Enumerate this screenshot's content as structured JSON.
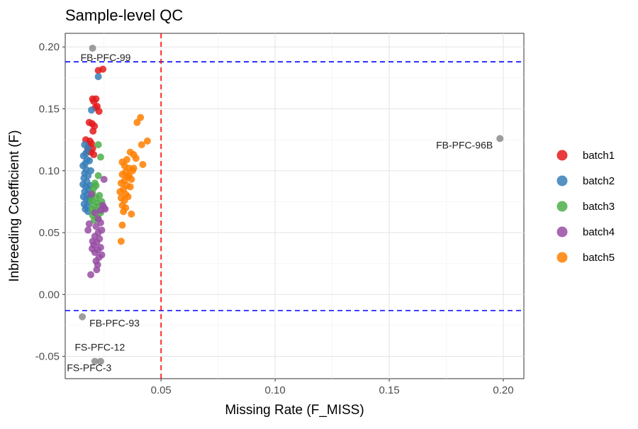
{
  "chart_data": {
    "type": "scatter",
    "title": "Sample-level QC",
    "xlabel": "Missing Rate (F_MISS)",
    "ylabel": "Inbreeding Coefficient (F)",
    "xlim": [
      0.008,
      0.209
    ],
    "ylim": [
      -0.068,
      0.211
    ],
    "x_ticks": [
      0.05,
      0.1,
      0.15,
      0.2
    ],
    "x_tick_labels": [
      "0.05",
      "0.10",
      "0.15",
      "0.20"
    ],
    "y_ticks": [
      -0.05,
      0.0,
      0.05,
      0.1,
      0.15,
      0.2
    ],
    "y_tick_labels": [
      "-0.05",
      "0.00",
      "0.05",
      "0.10",
      "0.15",
      "0.20"
    ],
    "grid": true,
    "legend_position": "right",
    "reference_lines": [
      {
        "orientation": "horizontal",
        "value": 0.188,
        "color": "#0000ff",
        "style": "dashed"
      },
      {
        "orientation": "horizontal",
        "value": -0.013,
        "color": "#0000ff",
        "style": "dashed"
      },
      {
        "orientation": "vertical",
        "value": 0.05,
        "color": "#ff0000",
        "style": "dashed"
      }
    ],
    "series": [
      {
        "name": "batch1",
        "color": "#E41A1C",
        "points": [
          [
            0.0225,
            0.181
          ],
          [
            0.0245,
            0.182
          ],
          [
            0.02,
            0.158
          ],
          [
            0.0215,
            0.158
          ],
          [
            0.0205,
            0.156
          ],
          [
            0.022,
            0.152
          ],
          [
            0.0228,
            0.148
          ],
          [
            0.0212,
            0.151
          ],
          [
            0.0185,
            0.139
          ],
          [
            0.0198,
            0.138
          ],
          [
            0.0208,
            0.136
          ],
          [
            0.0202,
            0.132
          ],
          [
            0.017,
            0.125
          ],
          [
            0.0188,
            0.124
          ],
          [
            0.0195,
            0.122
          ],
          [
            0.0182,
            0.12
          ],
          [
            0.02,
            0.118
          ],
          [
            0.0192,
            0.115
          ],
          [
            0.0205,
            0.113
          ],
          [
            0.0178,
            0.116
          ]
        ]
      },
      {
        "name": "batch2",
        "color": "#377EB8",
        "points": [
          [
            0.0225,
            0.176
          ],
          [
            0.0195,
            0.149
          ],
          [
            0.0165,
            0.121
          ],
          [
            0.0178,
            0.118
          ],
          [
            0.017,
            0.114
          ],
          [
            0.016,
            0.112
          ],
          [
            0.0175,
            0.109
          ],
          [
            0.0168,
            0.106
          ],
          [
            0.0158,
            0.104
          ],
          [
            0.0172,
            0.101
          ],
          [
            0.0165,
            0.098
          ],
          [
            0.018,
            0.096
          ],
          [
            0.0162,
            0.094
          ],
          [
            0.0175,
            0.091
          ],
          [
            0.0158,
            0.089
          ],
          [
            0.017,
            0.087
          ],
          [
            0.0183,
            0.085
          ],
          [
            0.0165,
            0.083
          ],
          [
            0.0178,
            0.081
          ],
          [
            0.016,
            0.079
          ],
          [
            0.0172,
            0.077
          ],
          [
            0.0185,
            0.075
          ],
          [
            0.0163,
            0.073
          ],
          [
            0.0175,
            0.071
          ],
          [
            0.0168,
            0.069
          ],
          [
            0.018,
            0.067
          ],
          [
            0.0188,
            0.078
          ],
          [
            0.019,
            0.088
          ],
          [
            0.0192,
            0.1
          ],
          [
            0.0186,
            0.108
          ]
        ]
      },
      {
        "name": "batch3",
        "color": "#4DAF4A",
        "points": [
          [
            0.0225,
            0.121
          ],
          [
            0.0235,
            0.111
          ],
          [
            0.0225,
            0.096
          ],
          [
            0.021,
            0.09
          ],
          [
            0.0215,
            0.088
          ],
          [
            0.0205,
            0.086
          ],
          [
            0.02,
            0.082
          ],
          [
            0.023,
            0.08
          ],
          [
            0.0215,
            0.078
          ],
          [
            0.0195,
            0.076
          ],
          [
            0.024,
            0.075
          ],
          [
            0.022,
            0.074
          ],
          [
            0.0205,
            0.072
          ],
          [
            0.0228,
            0.071
          ],
          [
            0.0198,
            0.069
          ],
          [
            0.0212,
            0.068
          ],
          [
            0.0235,
            0.066
          ],
          [
            0.02,
            0.064
          ],
          [
            0.0222,
            0.062
          ],
          [
            0.0207,
            0.06
          ]
        ]
      },
      {
        "name": "batch4",
        "color": "#984EA3",
        "points": [
          [
            0.025,
            0.093
          ],
          [
            0.0195,
            0.081
          ],
          [
            0.0245,
            0.072
          ],
          [
            0.025,
            0.07
          ],
          [
            0.0255,
            0.069
          ],
          [
            0.0235,
            0.068
          ],
          [
            0.021,
            0.066
          ],
          [
            0.0185,
            0.057
          ],
          [
            0.018,
            0.052
          ],
          [
            0.0225,
            0.061
          ],
          [
            0.0235,
            0.058
          ],
          [
            0.0215,
            0.055
          ],
          [
            0.024,
            0.052
          ],
          [
            0.0225,
            0.05
          ],
          [
            0.021,
            0.047
          ],
          [
            0.023,
            0.045
          ],
          [
            0.0218,
            0.042
          ],
          [
            0.0205,
            0.04
          ],
          [
            0.0235,
            0.038
          ],
          [
            0.0222,
            0.036
          ],
          [
            0.021,
            0.034
          ],
          [
            0.024,
            0.032
          ],
          [
            0.0228,
            0.03
          ],
          [
            0.0215,
            0.027
          ],
          [
            0.0222,
            0.024
          ],
          [
            0.0218,
            0.02
          ],
          [
            0.0192,
            0.016
          ],
          [
            0.02,
            0.043
          ],
          [
            0.0198,
            0.037
          ]
        ]
      },
      {
        "name": "batch5",
        "color": "#FF7F00",
        "points": [
          [
            0.041,
            0.143
          ],
          [
            0.0395,
            0.139
          ],
          [
            0.044,
            0.124
          ],
          [
            0.0415,
            0.121
          ],
          [
            0.0365,
            0.115
          ],
          [
            0.038,
            0.113
          ],
          [
            0.035,
            0.109
          ],
          [
            0.039,
            0.11
          ],
          [
            0.042,
            0.105
          ],
          [
            0.033,
            0.107
          ],
          [
            0.034,
            0.104
          ],
          [
            0.036,
            0.102
          ],
          [
            0.0375,
            0.1
          ],
          [
            0.0345,
            0.099
          ],
          [
            0.033,
            0.097
          ],
          [
            0.0355,
            0.095
          ],
          [
            0.037,
            0.093
          ],
          [
            0.034,
            0.092
          ],
          [
            0.0325,
            0.09
          ],
          [
            0.035,
            0.088
          ],
          [
            0.0365,
            0.087
          ],
          [
            0.0335,
            0.085
          ],
          [
            0.032,
            0.083
          ],
          [
            0.0345,
            0.081
          ],
          [
            0.0355,
            0.079
          ],
          [
            0.0325,
            0.078
          ],
          [
            0.034,
            0.076
          ],
          [
            0.033,
            0.072
          ],
          [
            0.0345,
            0.07
          ],
          [
            0.0335,
            0.067
          ],
          [
            0.037,
            0.065
          ],
          [
            0.033,
            0.056
          ],
          [
            0.0325,
            0.043
          ],
          [
            0.036,
            0.096
          ],
          [
            0.038,
            0.102
          ]
        ]
      },
      {
        "color": "#8C8C8C",
        "points": [
          [
            0.02,
            0.199
          ],
          [
            0.1985,
            0.126
          ],
          [
            0.0155,
            -0.018
          ],
          [
            0.021,
            -0.054
          ],
          [
            0.0235,
            -0.054
          ]
        ]
      }
    ],
    "annotations": [
      {
        "text": "FB-PFC-99",
        "x": 0.02,
        "y": 0.199,
        "anchor": "start",
        "dx": -17,
        "dy": 18
      },
      {
        "text": "FB-PFC-96B",
        "x": 0.1985,
        "y": 0.126,
        "anchor": "end",
        "dx": -10,
        "dy": 14
      },
      {
        "text": "FB-PFC-93",
        "x": 0.0155,
        "y": -0.018,
        "anchor": "start",
        "dx": 10,
        "dy": 14
      },
      {
        "text": "FS-PFC-12",
        "x": 0.021,
        "y": -0.054,
        "anchor": "middle",
        "dx": 7,
        "dy": -15
      },
      {
        "text": "FS-PFC-3",
        "x": 0.021,
        "y": -0.054,
        "anchor": "middle",
        "dx": -8,
        "dy": 14
      }
    ]
  }
}
